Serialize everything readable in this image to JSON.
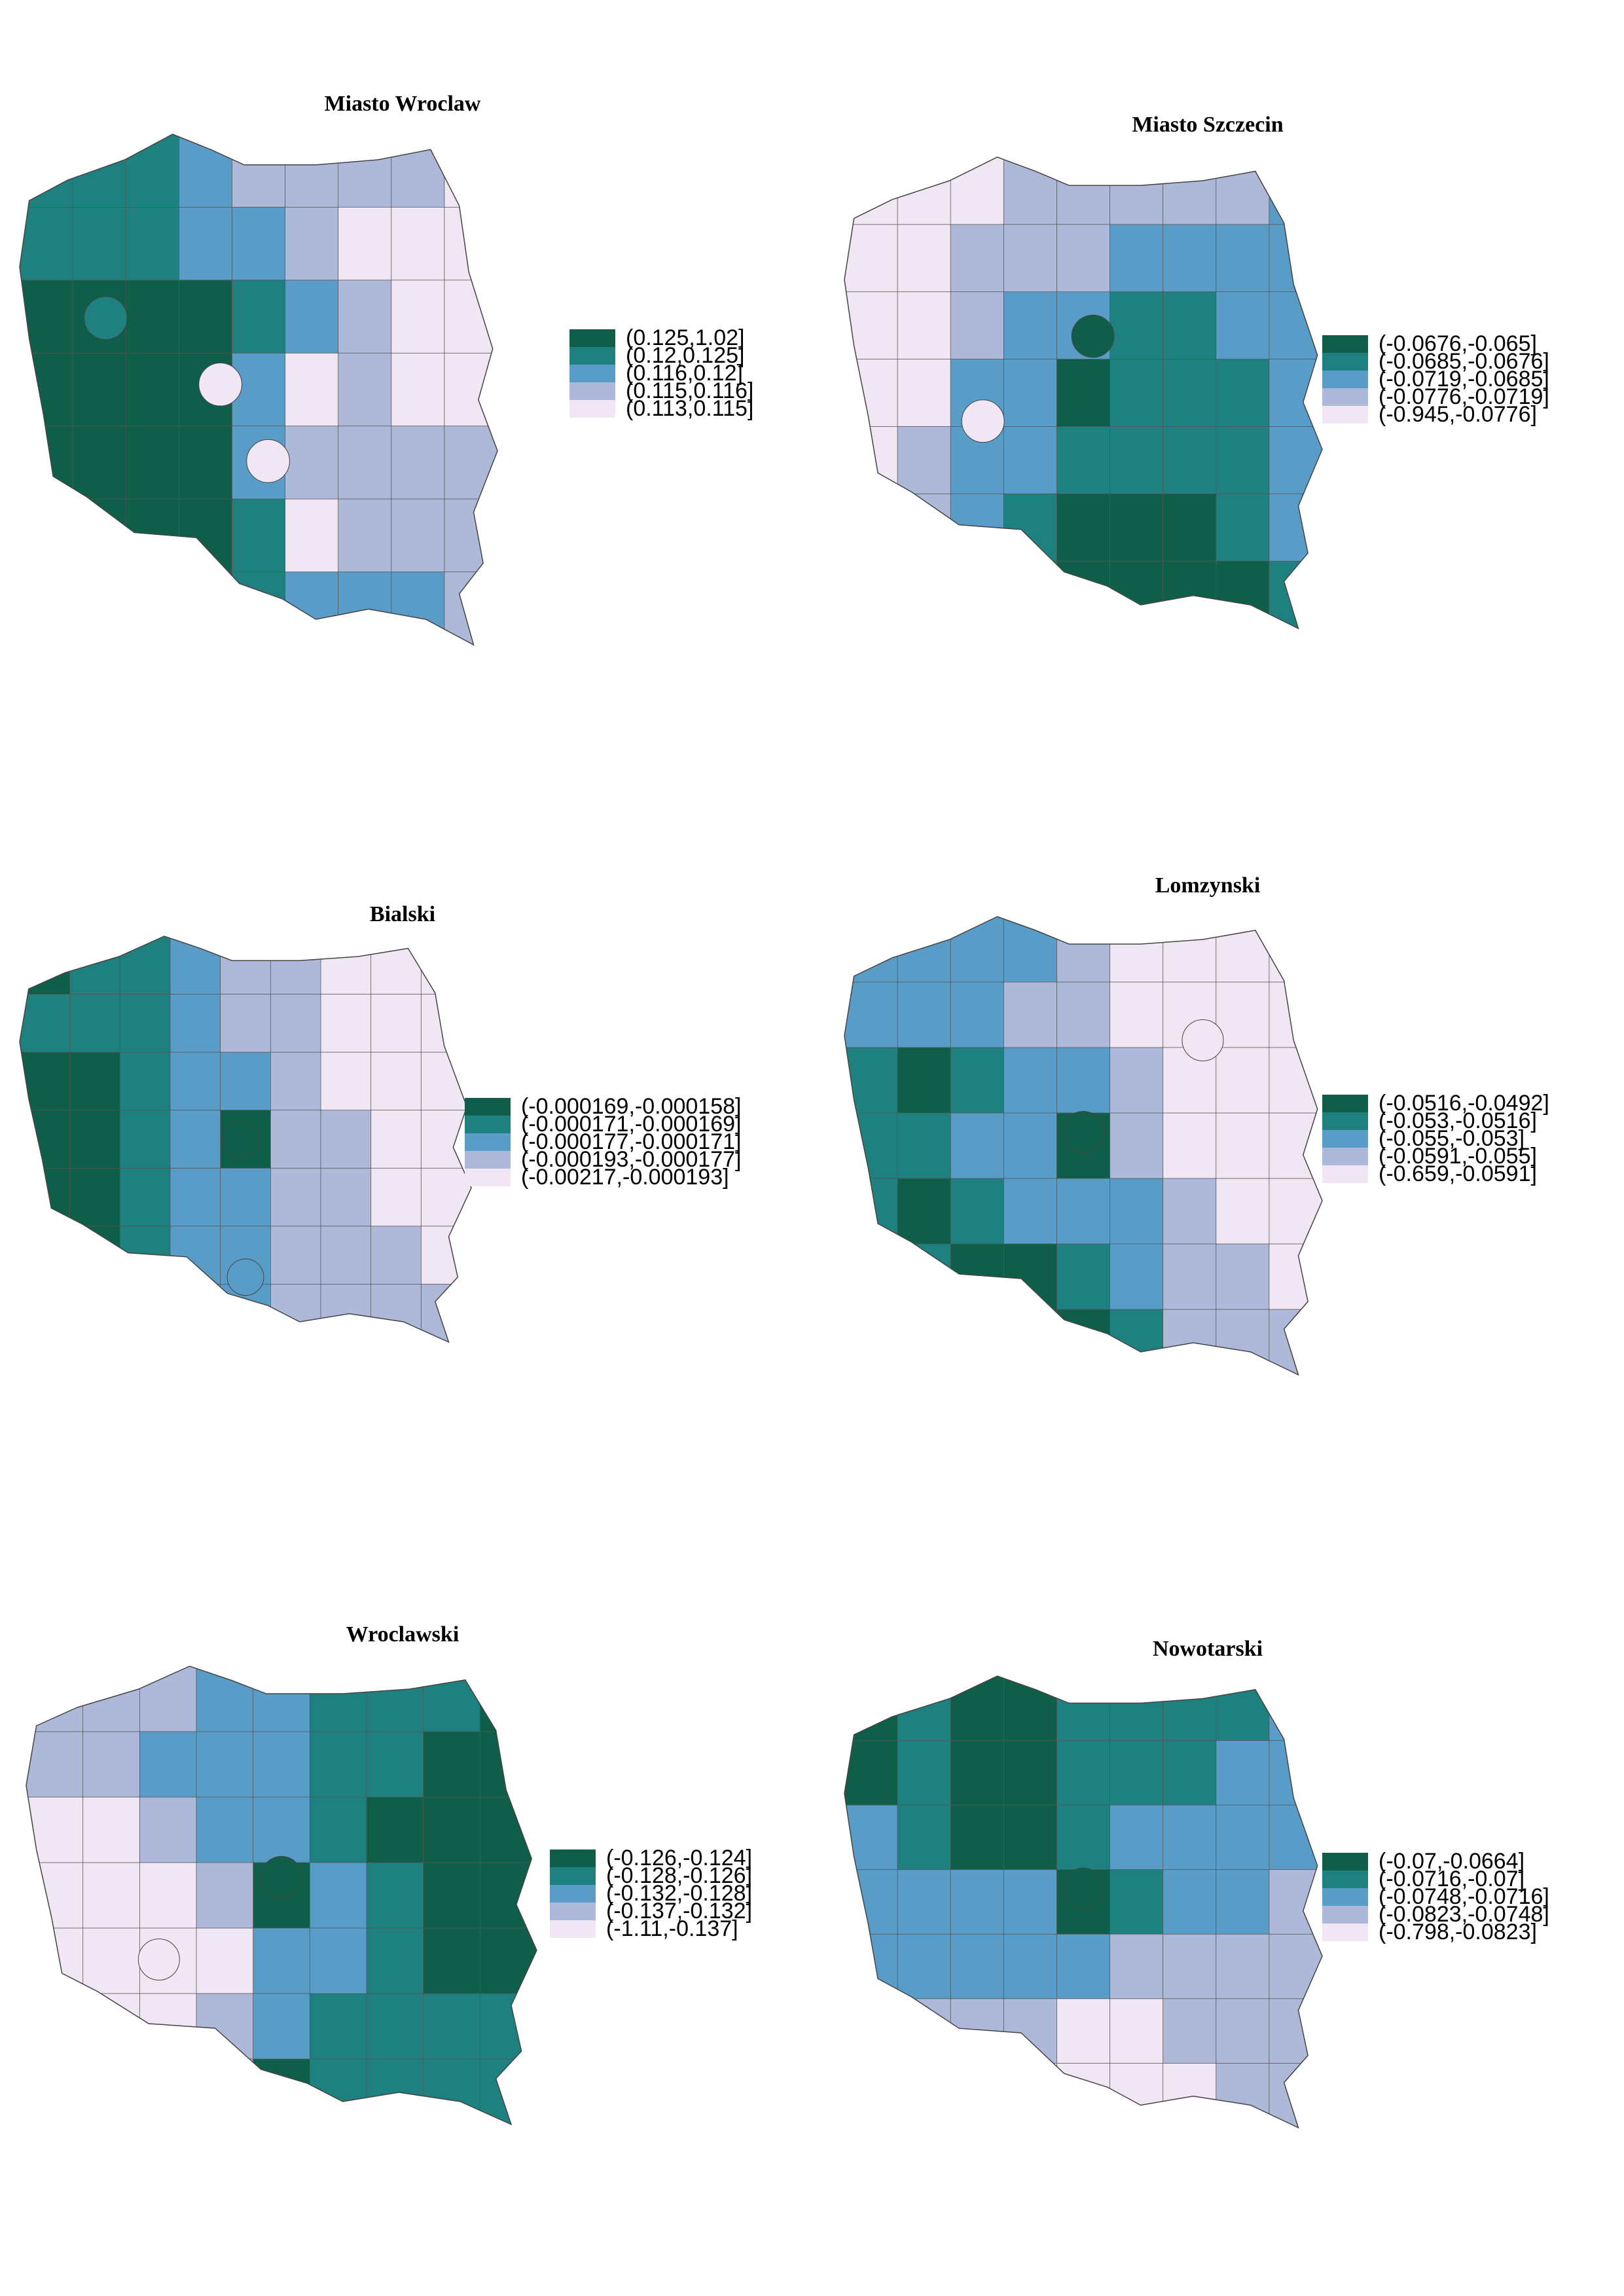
{
  "palette": [
    "#0f5e4a",
    "#1f8080",
    "#5a9cc8",
    "#aeb9da",
    "#f1e6f3"
  ],
  "panels": [
    {
      "title": "Miasto Wroclaw",
      "legend": [
        "(0.125,1.02]",
        "(0.12,0.125]",
        "(0.116,0.12]",
        "(0.115,0.116]",
        "(0.113,0.115]"
      ],
      "grid": [
        [
          1,
          1,
          1,
          2,
          3,
          3,
          3,
          3,
          4
        ],
        [
          1,
          1,
          1,
          2,
          2,
          3,
          4,
          4,
          4
        ],
        [
          0,
          0,
          0,
          0,
          1,
          2,
          3,
          4,
          4
        ],
        [
          0,
          0,
          0,
          0,
          2,
          4,
          3,
          4,
          4
        ],
        [
          0,
          0,
          0,
          0,
          2,
          3,
          3,
          3,
          3
        ],
        [
          0,
          0,
          0,
          0,
          1,
          4,
          3,
          3,
          3
        ],
        [
          0,
          0,
          0,
          0,
          1,
          2,
          2,
          2,
          3
        ]
      ],
      "capitals": [
        [
          0.42,
          0.49,
          4
        ],
        [
          0.18,
          0.36,
          1
        ],
        [
          0.52,
          0.64,
          4
        ]
      ]
    },
    {
      "title": "Miasto Szczecin",
      "legend": [
        "(-0.0676,-0.065]",
        "(-0.0685,-0.0676]",
        "(-0.0719,-0.0685]",
        "(-0.0776,-0.0719]",
        "(-0.945,-0.0776]"
      ],
      "grid": [
        [
          4,
          4,
          4,
          3,
          3,
          3,
          3,
          3,
          2
        ],
        [
          4,
          4,
          3,
          3,
          3,
          2,
          2,
          2,
          2
        ],
        [
          4,
          4,
          3,
          2,
          2,
          1,
          1,
          2,
          2
        ],
        [
          4,
          4,
          2,
          2,
          0,
          1,
          1,
          1,
          2
        ],
        [
          4,
          3,
          2,
          2,
          1,
          1,
          1,
          1,
          2
        ],
        [
          4,
          3,
          2,
          1,
          0,
          0,
          0,
          1,
          2
        ],
        [
          3,
          3,
          2,
          1,
          0,
          0,
          0,
          0,
          1
        ]
      ],
      "capitals": [
        [
          0.52,
          0.38,
          0
        ],
        [
          0.29,
          0.56,
          4
        ]
      ]
    },
    {
      "title": "Bialski",
      "legend": [
        "(-0.000169,-0.000158]",
        "(-0.000171,-0.000169]",
        "(-0.000177,-0.000171]",
        "(-0.000193,-0.000177]",
        "(-0.00217,-0.000193]"
      ],
      "grid": [
        [
          0,
          1,
          1,
          2,
          3,
          3,
          4,
          4,
          4
        ],
        [
          1,
          1,
          1,
          2,
          3,
          3,
          4,
          4,
          4
        ],
        [
          0,
          0,
          1,
          2,
          2,
          3,
          4,
          4,
          4
        ],
        [
          0,
          0,
          1,
          2,
          0,
          3,
          3,
          4,
          4
        ],
        [
          0,
          0,
          1,
          2,
          2,
          3,
          3,
          4,
          4
        ],
        [
          1,
          0,
          1,
          2,
          2,
          3,
          3,
          3,
          4
        ],
        [
          1,
          1,
          0,
          2,
          2,
          3,
          3,
          3,
          3
        ]
      ],
      "capitals": [
        [
          0.49,
          0.5,
          0
        ],
        [
          0.5,
          0.84,
          2
        ]
      ]
    },
    {
      "title": "Lomzynski",
      "legend": [
        "(-0.0516,-0.0492]",
        "(-0.053,-0.0516]",
        "(-0.055,-0.053]",
        "(-0.0591,-0.055]",
        "(-0.659,-0.0591]"
      ],
      "grid": [
        [
          2,
          2,
          2,
          2,
          3,
          4,
          4,
          4,
          4
        ],
        [
          2,
          2,
          2,
          3,
          3,
          4,
          4,
          4,
          4
        ],
        [
          1,
          0,
          1,
          2,
          2,
          3,
          4,
          4,
          4
        ],
        [
          1,
          1,
          2,
          2,
          0,
          3,
          4,
          4,
          4
        ],
        [
          1,
          0,
          1,
          2,
          2,
          2,
          3,
          4,
          4
        ],
        [
          1,
          1,
          0,
          0,
          1,
          2,
          3,
          3,
          4
        ],
        [
          1,
          1,
          0,
          0,
          0,
          1,
          3,
          3,
          3
        ]
      ],
      "capitals": [
        [
          0.5,
          0.47,
          0
        ],
        [
          0.75,
          0.27,
          4
        ]
      ]
    },
    {
      "title": "Wroclawski",
      "legend": [
        "(-0.126,-0.124]",
        "(-0.128,-0.126]",
        "(-0.132,-0.128]",
        "(-0.137,-0.132]",
        "(-1.11,-0.137]"
      ],
      "grid": [
        [
          3,
          3,
          3,
          2,
          2,
          1,
          1,
          1,
          0
        ],
        [
          3,
          3,
          2,
          2,
          2,
          1,
          1,
          0,
          0
        ],
        [
          4,
          4,
          3,
          2,
          2,
          1,
          0,
          0,
          0
        ],
        [
          4,
          4,
          4,
          3,
          0,
          2,
          1,
          0,
          0
        ],
        [
          4,
          4,
          4,
          4,
          2,
          2,
          1,
          0,
          0
        ],
        [
          4,
          4,
          4,
          3,
          2,
          1,
          1,
          1,
          1
        ],
        [
          4,
          4,
          4,
          3,
          0,
          1,
          1,
          1,
          1
        ]
      ],
      "capitals": [
        [
          0.26,
          0.64,
          4
        ],
        [
          0.5,
          0.46,
          0
        ]
      ]
    },
    {
      "title": "Nowotarski",
      "legend": [
        "(-0.07,-0.0664]",
        "(-0.0716,-0.07]",
        "(-0.0748,-0.0716]",
        "(-0.0823,-0.0748]",
        "(-0.798,-0.0823]"
      ],
      "grid": [
        [
          0,
          1,
          0,
          0,
          1,
          1,
          1,
          1,
          2
        ],
        [
          0,
          1,
          0,
          0,
          1,
          1,
          1,
          2,
          2
        ],
        [
          2,
          1,
          0,
          0,
          1,
          2,
          2,
          2,
          2
        ],
        [
          2,
          2,
          2,
          2,
          0,
          1,
          2,
          2,
          3
        ],
        [
          2,
          2,
          2,
          2,
          2,
          3,
          3,
          3,
          3
        ],
        [
          2,
          3,
          3,
          3,
          4,
          4,
          3,
          3,
          3
        ],
        [
          3,
          3,
          3,
          4,
          4,
          4,
          4,
          3,
          3
        ]
      ],
      "capitals": [
        [
          0.5,
          0.47,
          0
        ]
      ]
    }
  ]
}
